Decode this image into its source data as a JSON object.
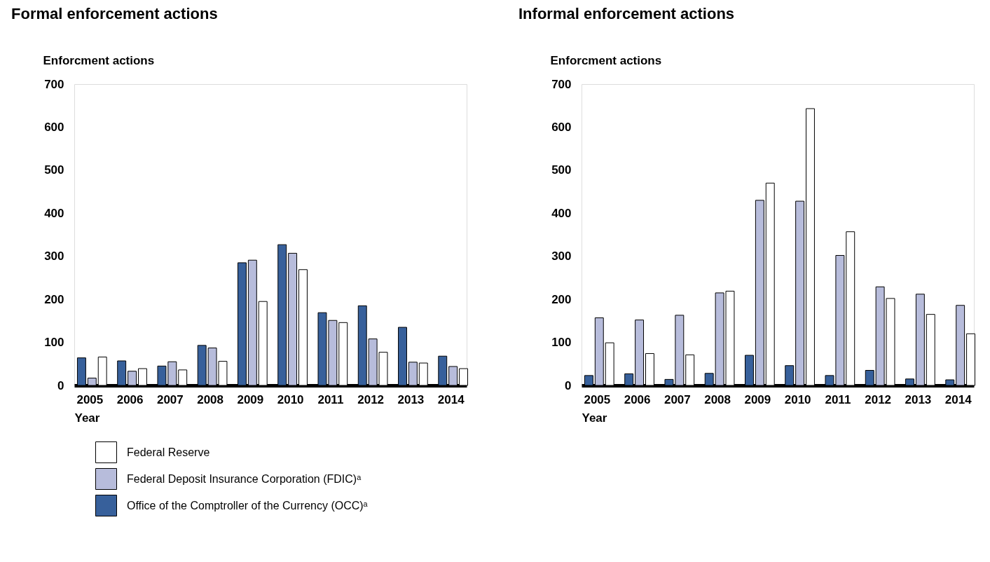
{
  "chart_data": [
    {
      "type": "bar",
      "title": "Formal enforcement actions",
      "ylabel": "Enforcment actions",
      "xlabel": "Year",
      "categories": [
        "2005",
        "2006",
        "2007",
        "2008",
        "2009",
        "2010",
        "2011",
        "2012",
        "2013",
        "2014"
      ],
      "series": [
        {
          "name": "Office of the Comptroller of the Currency (OCC)ᵃ",
          "color": "#37609b",
          "values": [
            64,
            57,
            45,
            93,
            285,
            327,
            169,
            185,
            135,
            68
          ]
        },
        {
          "name": "Federal Deposit Insurance Corporation (FDIC)ᵃ",
          "color": "#b7bcdb",
          "values": [
            17,
            33,
            55,
            87,
            291,
            307,
            151,
            108,
            54,
            44
          ]
        },
        {
          "name": "Federal Reserve",
          "color": "#ffffff",
          "values": [
            66,
            39,
            36,
            56,
            195,
            269,
            146,
            77,
            52,
            39
          ]
        }
      ],
      "ylim": [
        0,
        700
      ],
      "yticks": [
        0,
        100,
        200,
        300,
        400,
        500,
        600,
        700
      ],
      "grid": false,
      "legend": "bottom left"
    },
    {
      "type": "bar",
      "title": "Informal enforcement actions",
      "ylabel": "Enforcment actions",
      "xlabel": "Year",
      "categories": [
        "2005",
        "2006",
        "2007",
        "2008",
        "2009",
        "2010",
        "2011",
        "2012",
        "2013",
        "2014"
      ],
      "series": [
        {
          "color": "#37609b",
          "values": [
            23,
            27,
            14,
            28,
            70,
            46,
            23,
            35,
            15,
            13
          ]
        },
        {
          "color": "#b7bcdb",
          "values": [
            157,
            152,
            163,
            215,
            430,
            428,
            302,
            229,
            212,
            186
          ]
        },
        {
          "color": "#ffffff",
          "values": [
            99,
            74,
            71,
            219,
            470,
            643,
            357,
            202,
            165,
            120
          ]
        }
      ],
      "ylim": [
        0,
        700
      ],
      "yticks": [
        0,
        100,
        200,
        300,
        400,
        500,
        600,
        700
      ],
      "grid": false,
      "legend": false
    }
  ]
}
